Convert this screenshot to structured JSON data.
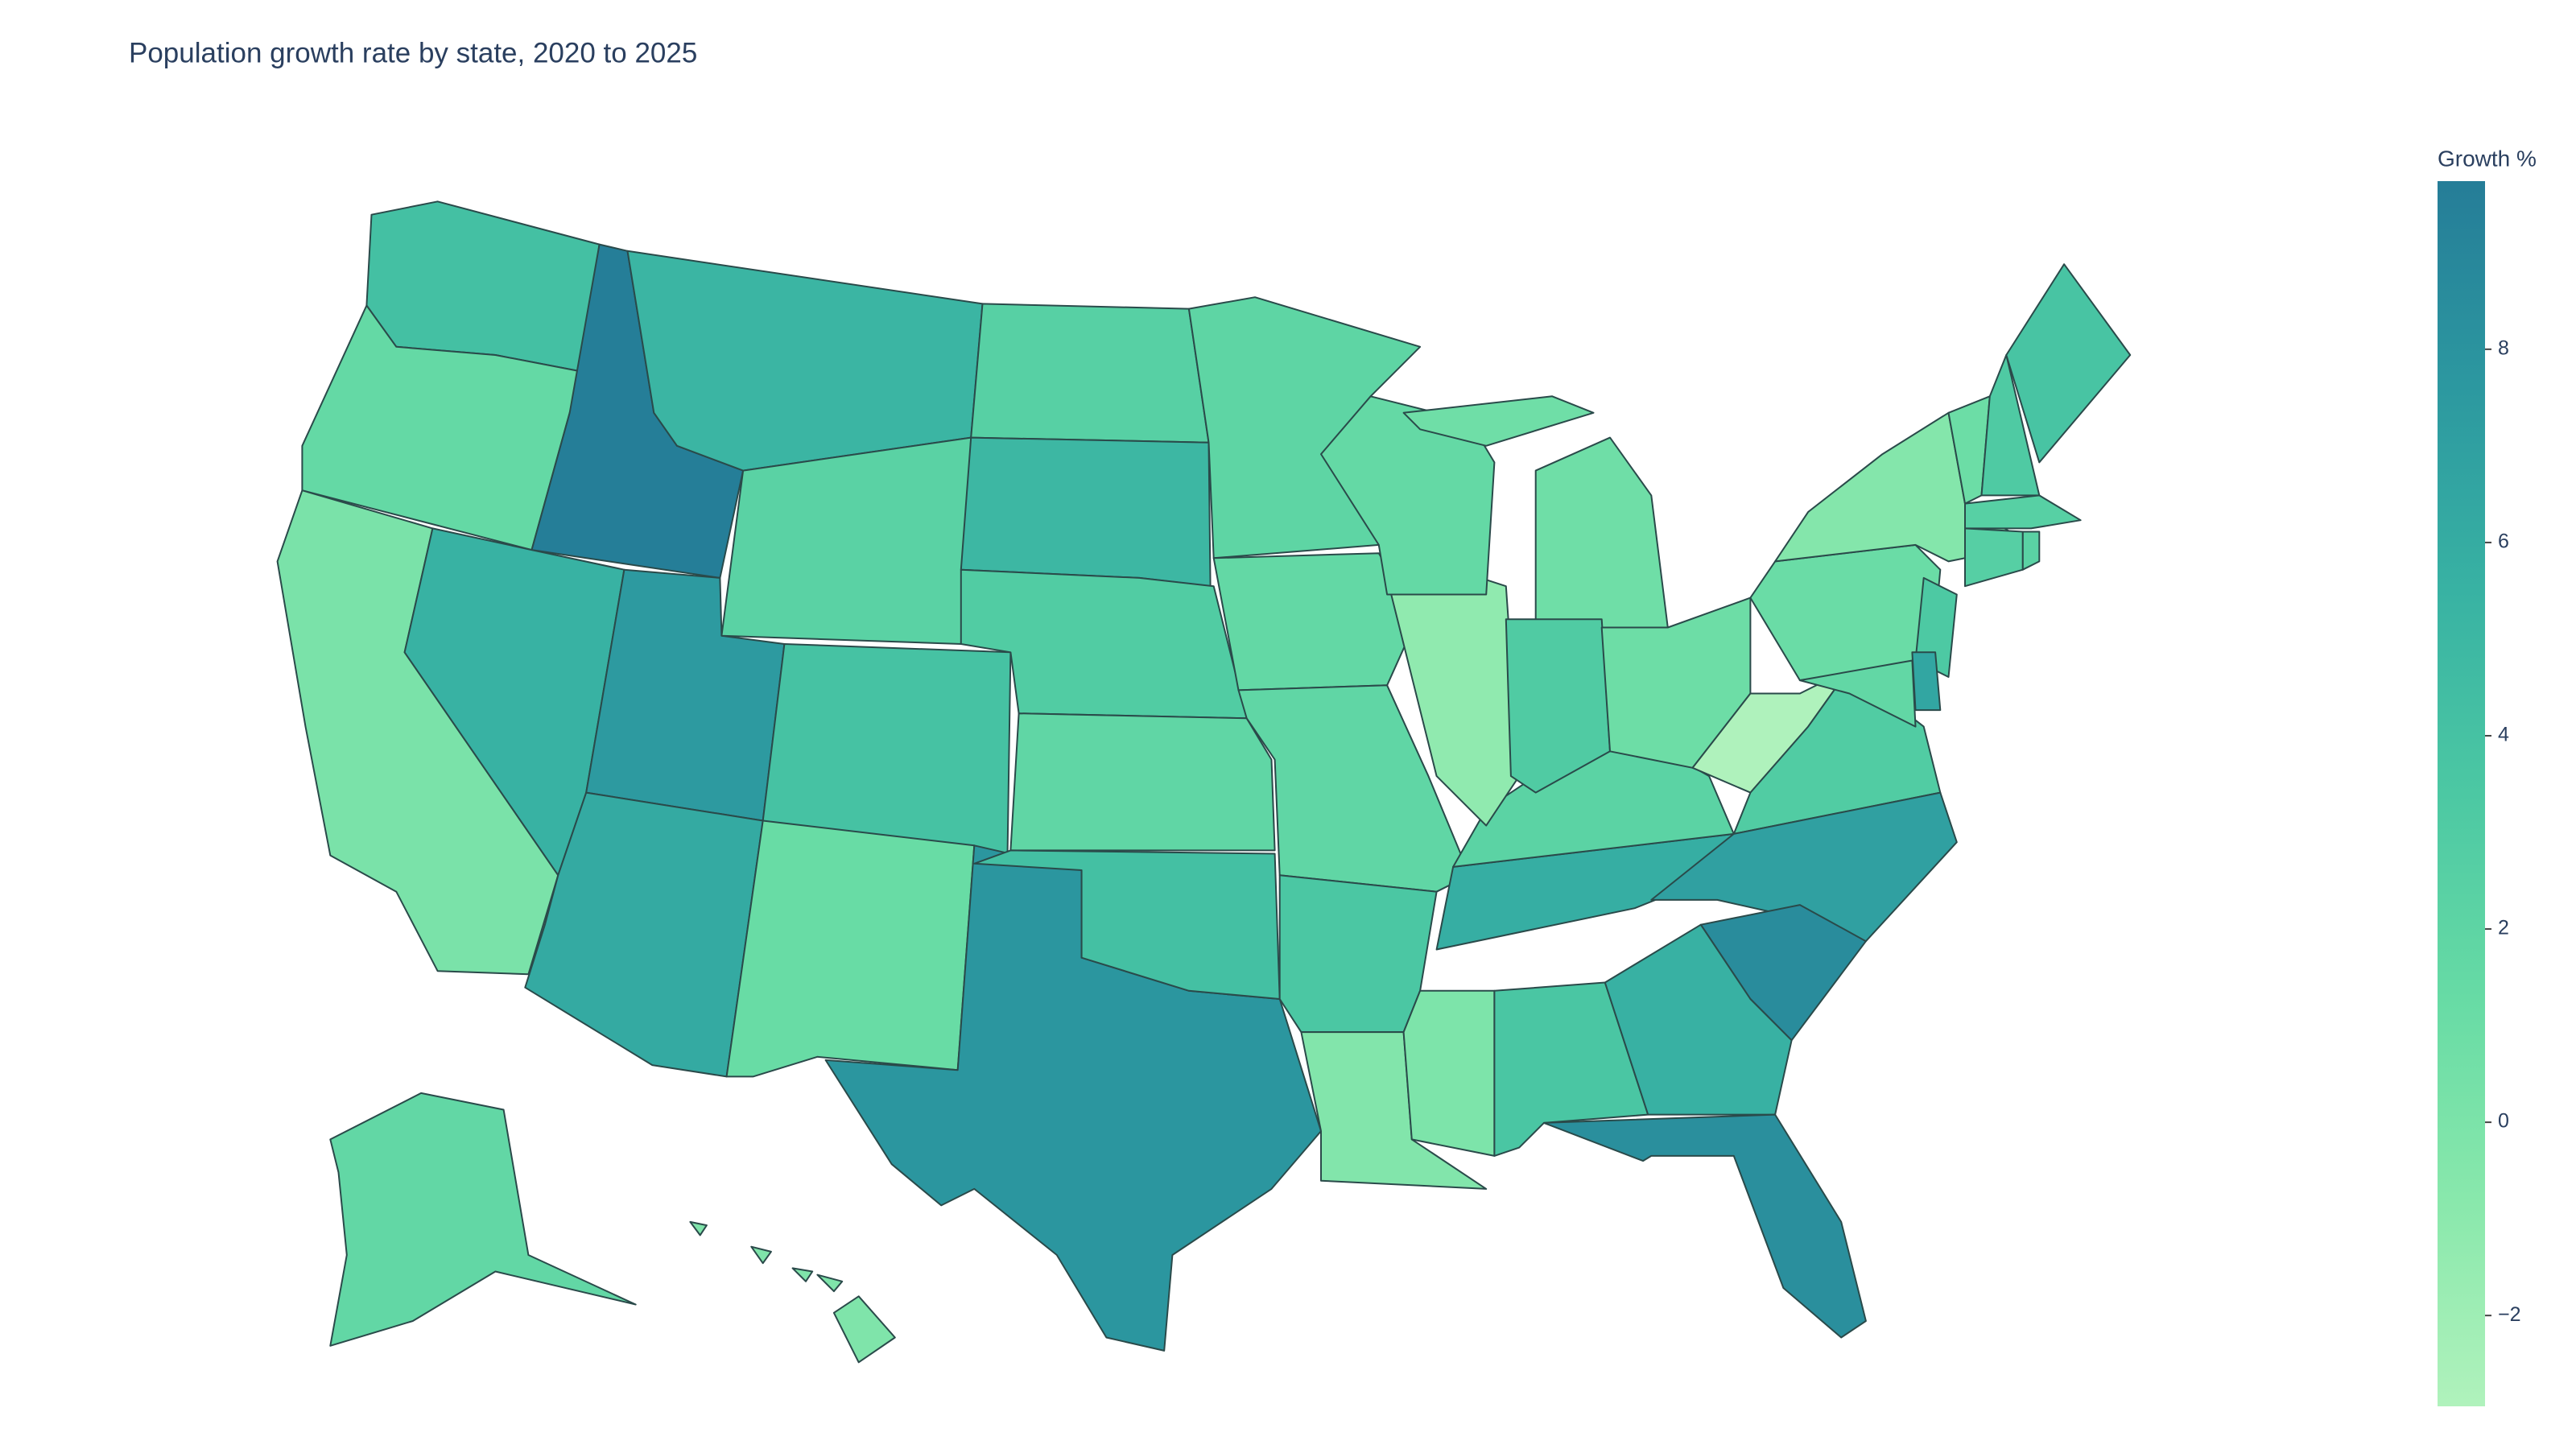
{
  "chart_data": {
    "type": "choropleth",
    "title": "Population growth rate by state, 2020 to 2025",
    "colorbar_title": "Growth %",
    "colorscale": [
      "#b0f2bc",
      "#89e8ac",
      "#67dba5",
      "#4cc8a3",
      "#38b2a3",
      "#2c98a0",
      "#257d98"
    ],
    "zlim": [
      -2.94,
      9.74
    ],
    "ticks": [
      {
        "value": -2,
        "label": "−2"
      },
      0,
      2,
      4,
      6,
      8
    ],
    "values": [
      4.2,
      1.5,
      0.1,
      9.7,
      5.5,
      7.5,
      6.2,
      5.2,
      2.3,
      4.0,
      1.2,
      7.8,
      2.5,
      5.0,
      3.0,
      1.8,
      4.2,
      2.0,
      1.6,
      1.8,
      3.5,
      -0.4,
      -0.1,
      3.6,
      5.8,
      2.2,
      -1.2,
      1.5,
      0.8,
      3.1,
      0.9,
      -2.9,
      3.0,
      7.0,
      8.6,
      5.6,
      8.3,
      1.1,
      -0.5,
      1.0,
      3.2,
      3.8,
      2.5,
      2.6,
      2.3,
      3.3,
      6.5,
      1.7,
      1.7,
      -0.2
    ]
  }
}
